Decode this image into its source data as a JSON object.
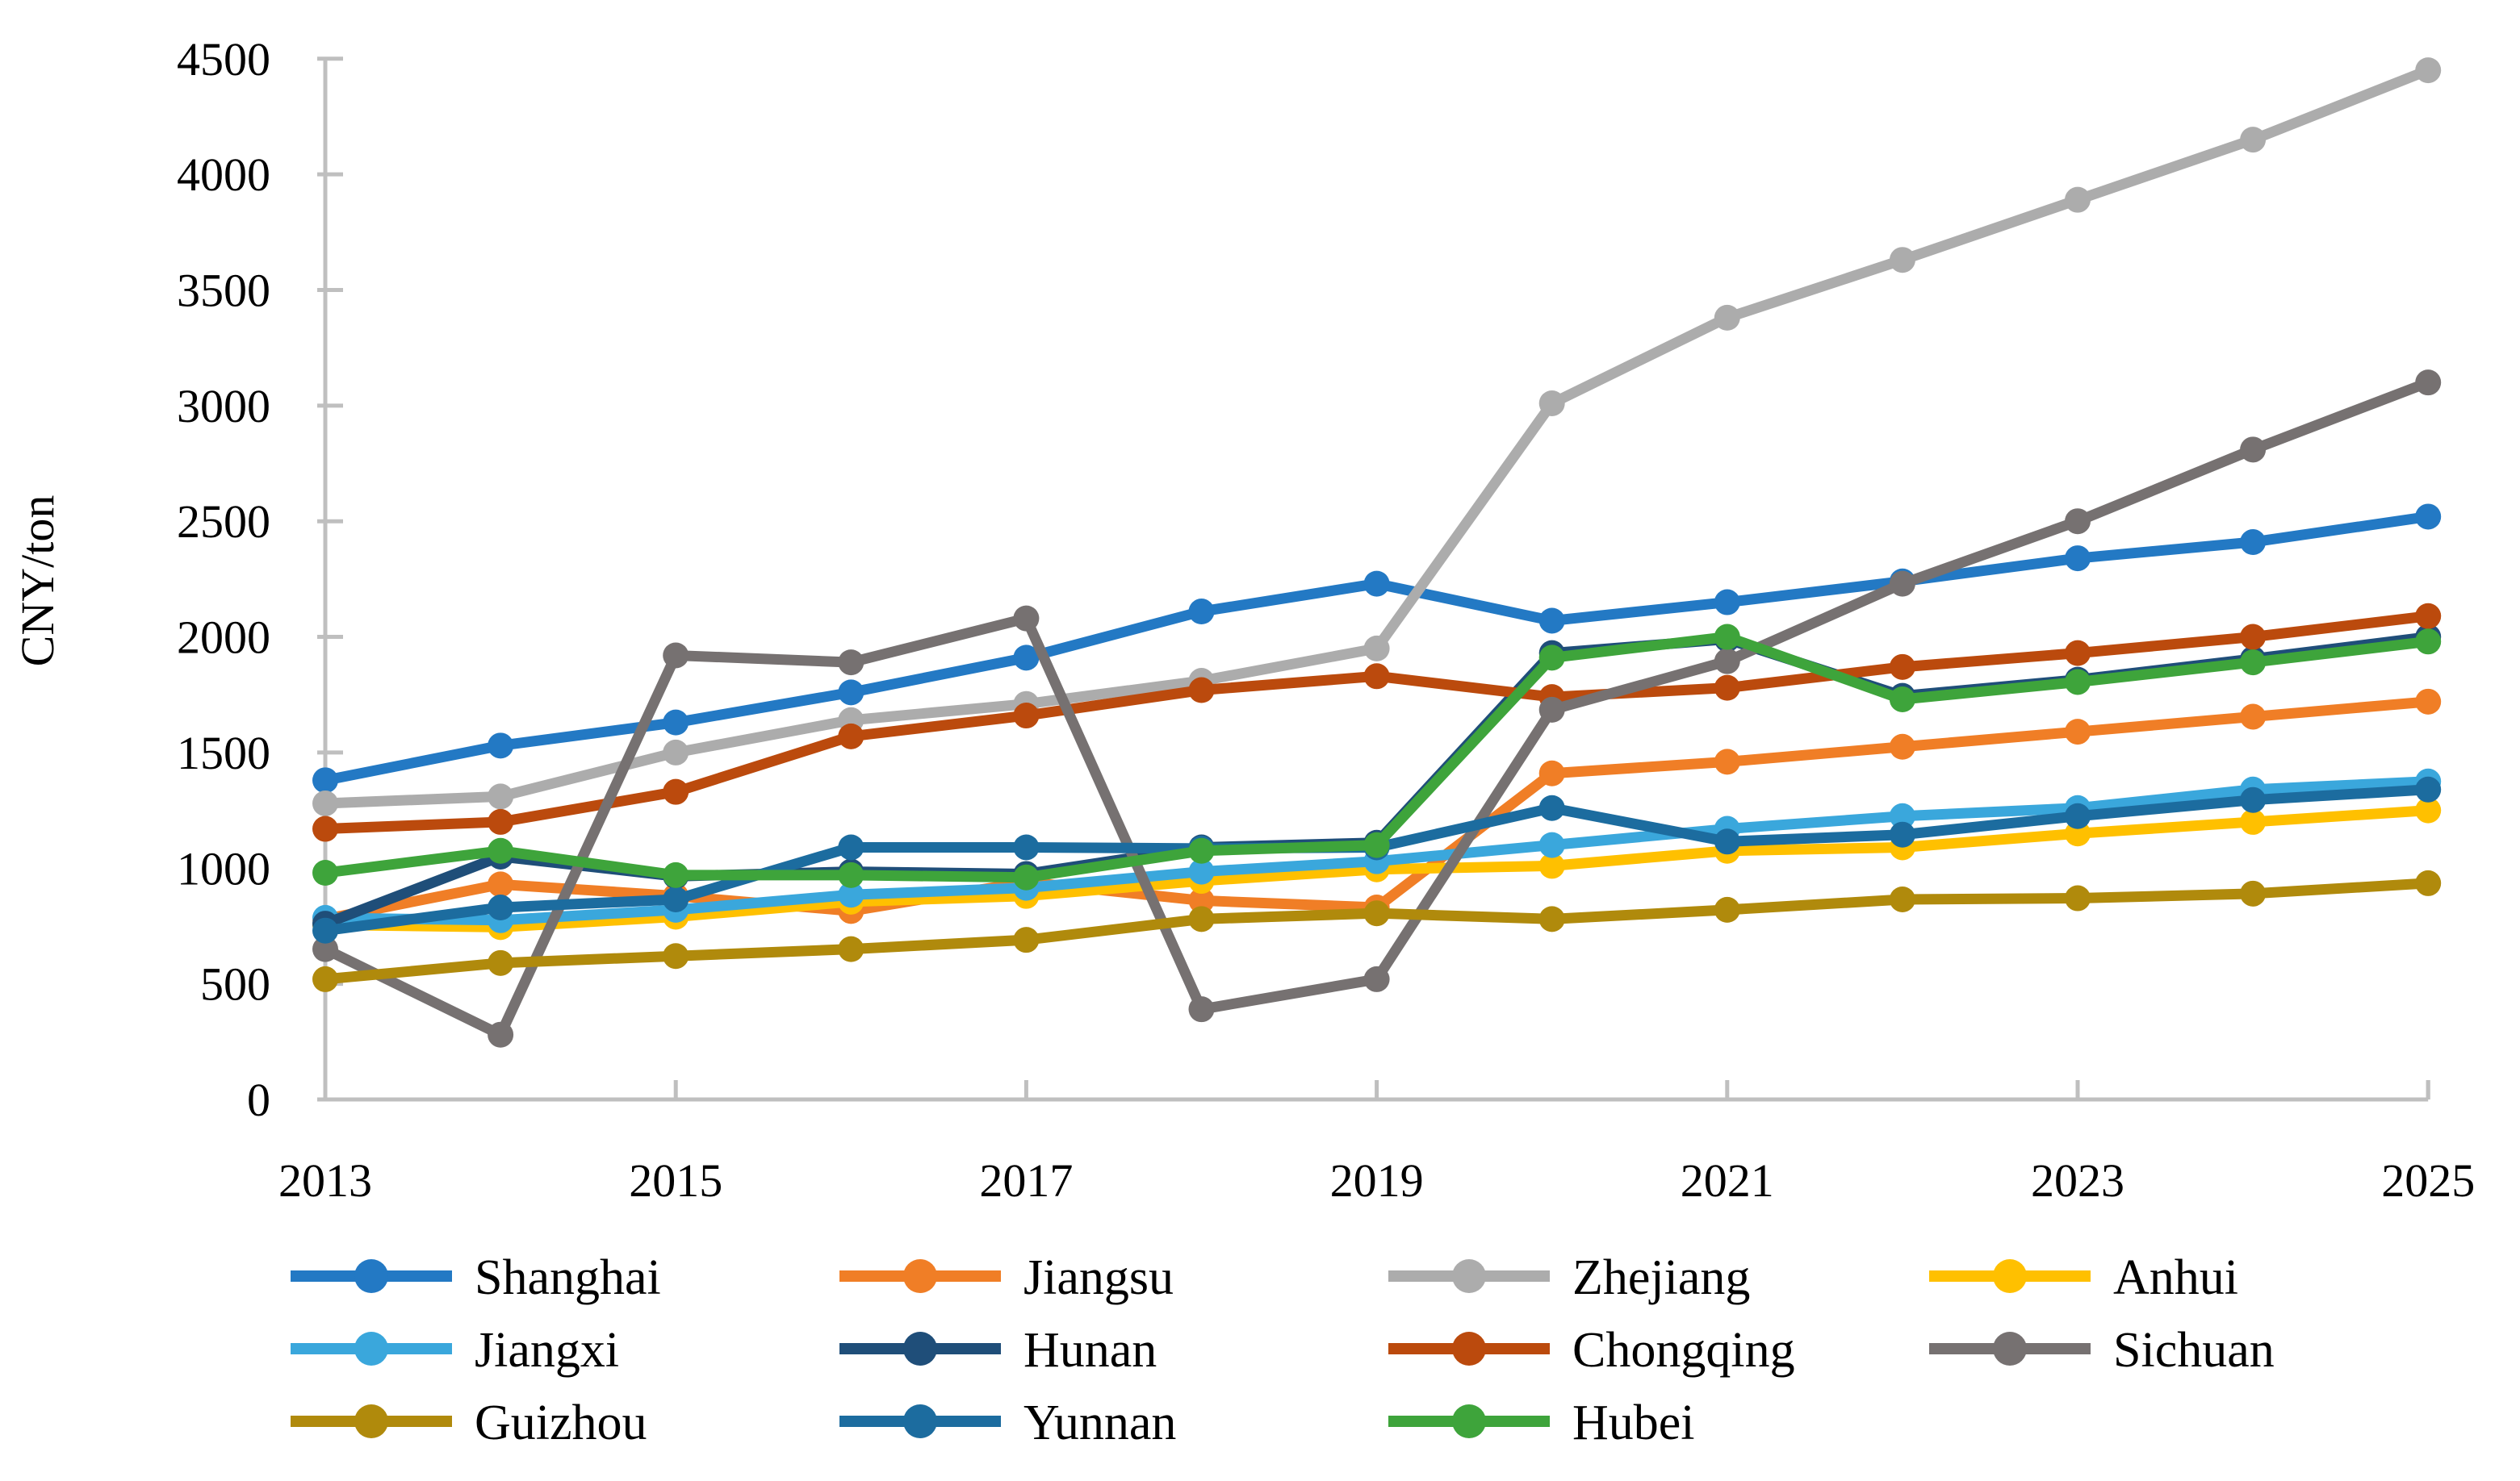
{
  "figure": {
    "background": "#ffffff",
    "axis_color": "#BFBFBF",
    "text_color": "#000000"
  },
  "y_axis": {
    "title": "CNY/ton",
    "min": 0,
    "max": 4500,
    "tick_step": 500,
    "tick_labels": [
      "0",
      "500",
      "1000",
      "1500",
      "2000",
      "2500",
      "3000",
      "3500",
      "4000",
      "4500"
    ]
  },
  "x_axis": {
    "labeled_years": [
      "2013",
      "2015",
      "2017",
      "2019",
      "2021",
      "2023",
      "2025"
    ]
  },
  "chart_data": {
    "type": "line",
    "title": "",
    "xlabel": "",
    "ylabel": "CNY/ton",
    "x": [
      2013,
      2014,
      2015,
      2016,
      2017,
      2018,
      2019,
      2020,
      2021,
      2022,
      2023,
      2024,
      2025
    ],
    "ylim": [
      0,
      4500
    ],
    "grid": false,
    "legend_position": "bottom",
    "marker": "circle",
    "series": [
      {
        "name": "Shanghai",
        "color": "#2379C4",
        "values": [
          1380,
          1530,
          1630,
          1760,
          1910,
          2110,
          2230,
          2070,
          2150,
          2240,
          2340,
          2410,
          2520
        ]
      },
      {
        "name": "Jiangsu",
        "color": "#F07E26",
        "values": [
          780,
          930,
          880,
          815,
          940,
          860,
          830,
          1410,
          1460,
          1525,
          1590,
          1655,
          1720
        ]
      },
      {
        "name": "Zhejiang",
        "color": "#ACACAC",
        "values": [
          1280,
          1310,
          1500,
          1640,
          1710,
          1810,
          1950,
          3010,
          3380,
          3630,
          3890,
          4150,
          4450
        ]
      },
      {
        "name": "Anhui",
        "color": "#FFC000",
        "values": [
          755,
          745,
          790,
          855,
          880,
          945,
          995,
          1010,
          1075,
          1090,
          1150,
          1200,
          1250
        ]
      },
      {
        "name": "Jiangxi",
        "color": "#3AA7DC",
        "values": [
          785,
          775,
          820,
          885,
          915,
          985,
          1030,
          1100,
          1170,
          1225,
          1260,
          1340,
          1375
        ]
      },
      {
        "name": "Hunan",
        "color": "#1F4E79",
        "values": [
          760,
          1050,
          965,
          985,
          975,
          1090,
          1110,
          1930,
          1990,
          1745,
          1815,
          1905,
          2000
        ]
      },
      {
        "name": "Chongqing",
        "color": "#BB4A0D",
        "values": [
          1170,
          1200,
          1330,
          1570,
          1660,
          1770,
          1830,
          1740,
          1780,
          1870,
          1930,
          2000,
          2090
        ]
      },
      {
        "name": "Sichuan",
        "color": "#767171",
        "values": [
          650,
          280,
          1920,
          1890,
          2080,
          390,
          520,
          1685,
          1895,
          2230,
          2500,
          2810,
          3100
        ]
      },
      {
        "name": "Guizhou",
        "color": "#B08A0C",
        "values": [
          520,
          590,
          620,
          650,
          690,
          780,
          805,
          780,
          820,
          865,
          870,
          890,
          935
        ]
      },
      {
        "name": "Yunnan",
        "color": "#1C6C9F",
        "values": [
          730,
          830,
          865,
          1090,
          1090,
          1085,
          1090,
          1260,
          1115,
          1145,
          1225,
          1295,
          1340
        ]
      },
      {
        "name": "Hubei",
        "color": "#3EA43B",
        "values": [
          980,
          1075,
          970,
          970,
          960,
          1075,
          1100,
          1910,
          2000,
          1730,
          1805,
          1890,
          1980
        ]
      }
    ]
  }
}
